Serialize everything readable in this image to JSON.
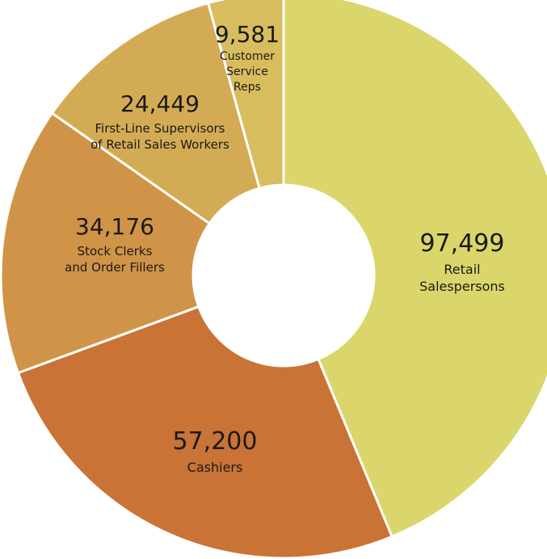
{
  "chart_data": {
    "type": "pie",
    "title": "",
    "donut": true,
    "slices": [
      {
        "value": 97499,
        "value_label": "97,499",
        "label_lines": [
          "Retail",
          "Salespersons"
        ],
        "color": "#dad66b"
      },
      {
        "value": 57200,
        "value_label": "57,200",
        "label_lines": [
          "Cashiers"
        ],
        "color": "#c97336"
      },
      {
        "value": 34176,
        "value_label": "34,176",
        "label_lines": [
          "Stock Clerks",
          "and Order Fillers"
        ],
        "color": "#d09448"
      },
      {
        "value": 24449,
        "value_label": "24,449",
        "label_lines": [
          "First-Line Supervisors",
          "of Retail Sales Workers"
        ],
        "color": "#d4ab55"
      },
      {
        "value": 9581,
        "value_label": "9,581",
        "label_lines": [
          "Customer",
          "Service",
          "Reps"
        ],
        "color": "#d8bd5f"
      }
    ]
  }
}
